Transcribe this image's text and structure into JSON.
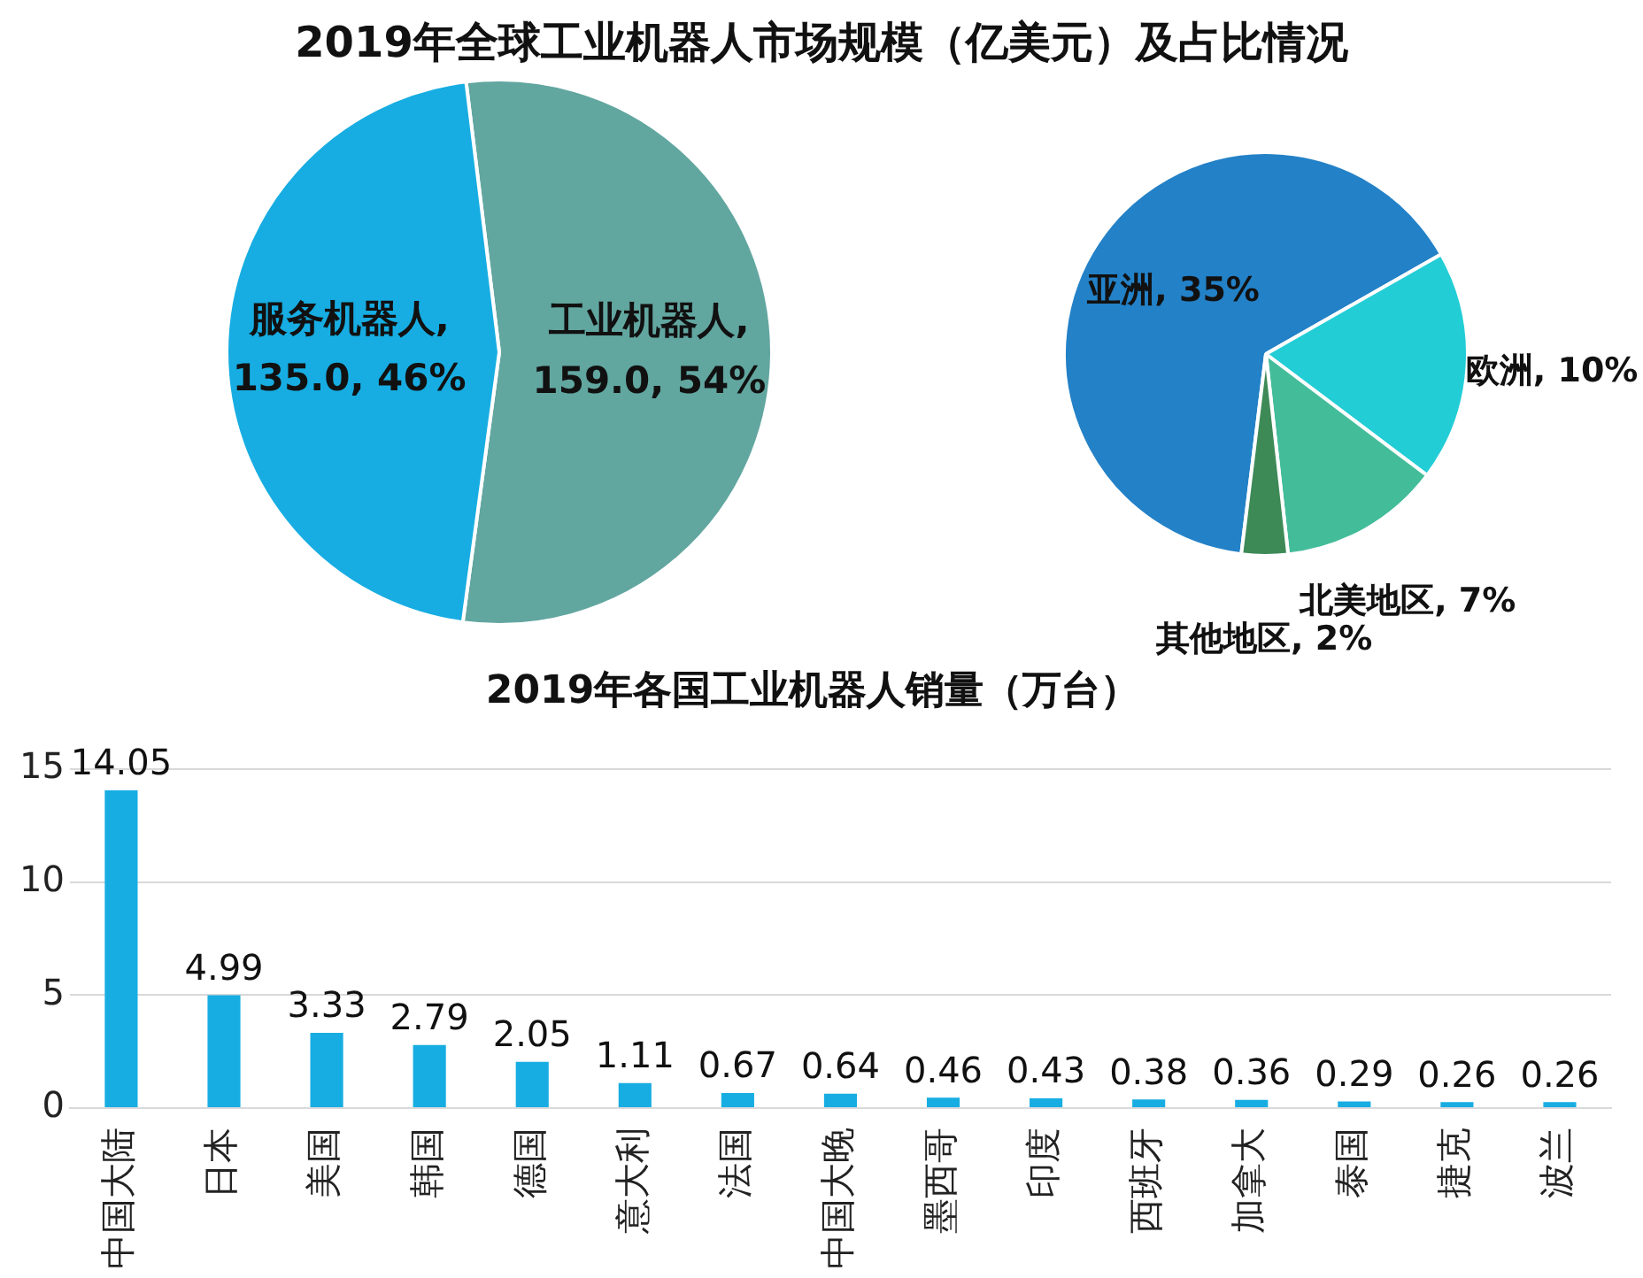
{
  "chart_data": [
    {
      "type": "pie",
      "title": "2019年全球工业机器人市场规模（亿美元）及占比情况",
      "categories": [
        "工业机器人",
        "服务机器人"
      ],
      "values": [
        159.0,
        135.0
      ],
      "value_labels": [
        ", 159.0, 54%",
        ", 135.0, 46%"
      ],
      "colors": [
        "#62a6a0",
        "#17ade2"
      ],
      "legend": false
    },
    {
      "type": "pie",
      "categories": [
        "亚洲",
        "欧洲",
        "北美地区",
        "其他地区"
      ],
      "values": [
        35,
        10,
        7,
        2
      ],
      "value_labels": [
        ", 35%",
        ", 10%",
        ", 7%",
        ", 2%"
      ],
      "colors": [
        "#2381c7",
        "#23cdd6",
        "#43bc9a",
        "#3d8a57"
      ],
      "legend": false
    },
    {
      "type": "bar",
      "title": "2019年各国工业机器人销量（万台）",
      "categories": [
        "中国大陆",
        "日本",
        "美国",
        "韩国",
        "德国",
        "意大利",
        "法国",
        "中国大晚",
        "墨西哥",
        "印度",
        "西班牙",
        "加拿大",
        "泰国",
        "捷克",
        "波兰"
      ],
      "values": [
        14.05,
        4.99,
        3.33,
        2.79,
        2.05,
        1.11,
        0.67,
        0.64,
        0.46,
        0.43,
        0.38,
        0.36,
        0.29,
        0.26,
        0.26
      ],
      "color": "#17ade2",
      "data_labels": true,
      "ylim": [
        0,
        15
      ],
      "yticks": [
        0,
        5,
        10,
        15
      ],
      "grid": "y",
      "legend": false
    }
  ]
}
